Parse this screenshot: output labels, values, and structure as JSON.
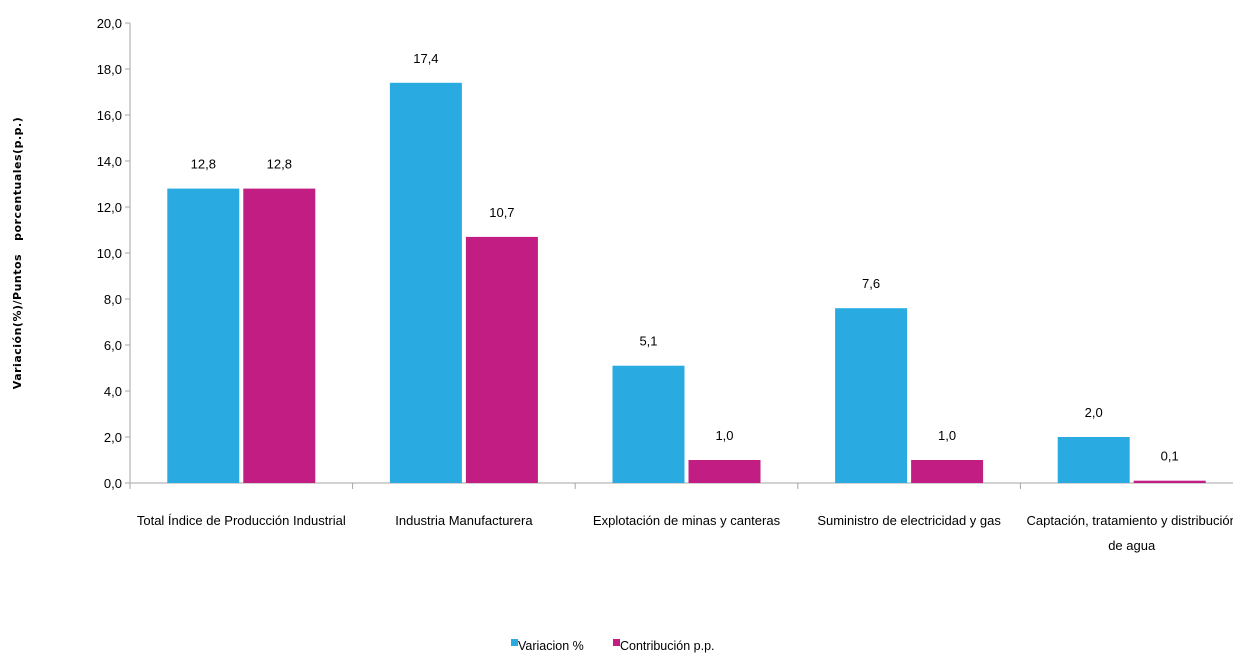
{
  "chart_data": {
    "type": "bar",
    "ylabel": "Variación(%)/Puntos   porcentuales(p.p.)",
    "ylim": [
      0,
      20
    ],
    "ytick_step": 2,
    "ytick_labels": [
      "0,0",
      "2,0",
      "4,0",
      "6,0",
      "8,0",
      "10,0",
      "12,0",
      "14,0",
      "16,0",
      "18,0",
      "20,0"
    ],
    "grid": false,
    "legend_position": "bottom-center",
    "categories": [
      [
        "Total Índice de Producción Industrial"
      ],
      [
        "Industria Manufacturera"
      ],
      [
        "Explotación de minas y canteras"
      ],
      [
        "Suministro de electricidad y gas"
      ],
      [
        "Captación, tratamiento y distribución",
        "de agua"
      ]
    ],
    "series": [
      {
        "name": "Variacion %",
        "color": "#29abe2",
        "values": [
          12.8,
          17.4,
          5.1,
          7.6,
          2.0
        ],
        "labels": [
          "12,8",
          "17,4",
          "5,1",
          "7,6",
          "2,0"
        ]
      },
      {
        "name": "Contribución p.p.",
        "color": "#c11d82",
        "values": [
          12.8,
          10.7,
          1.0,
          1.0,
          0.1
        ],
        "labels": [
          "12,8",
          "10,7",
          "1,0",
          "1,0",
          "0,1"
        ]
      }
    ]
  }
}
